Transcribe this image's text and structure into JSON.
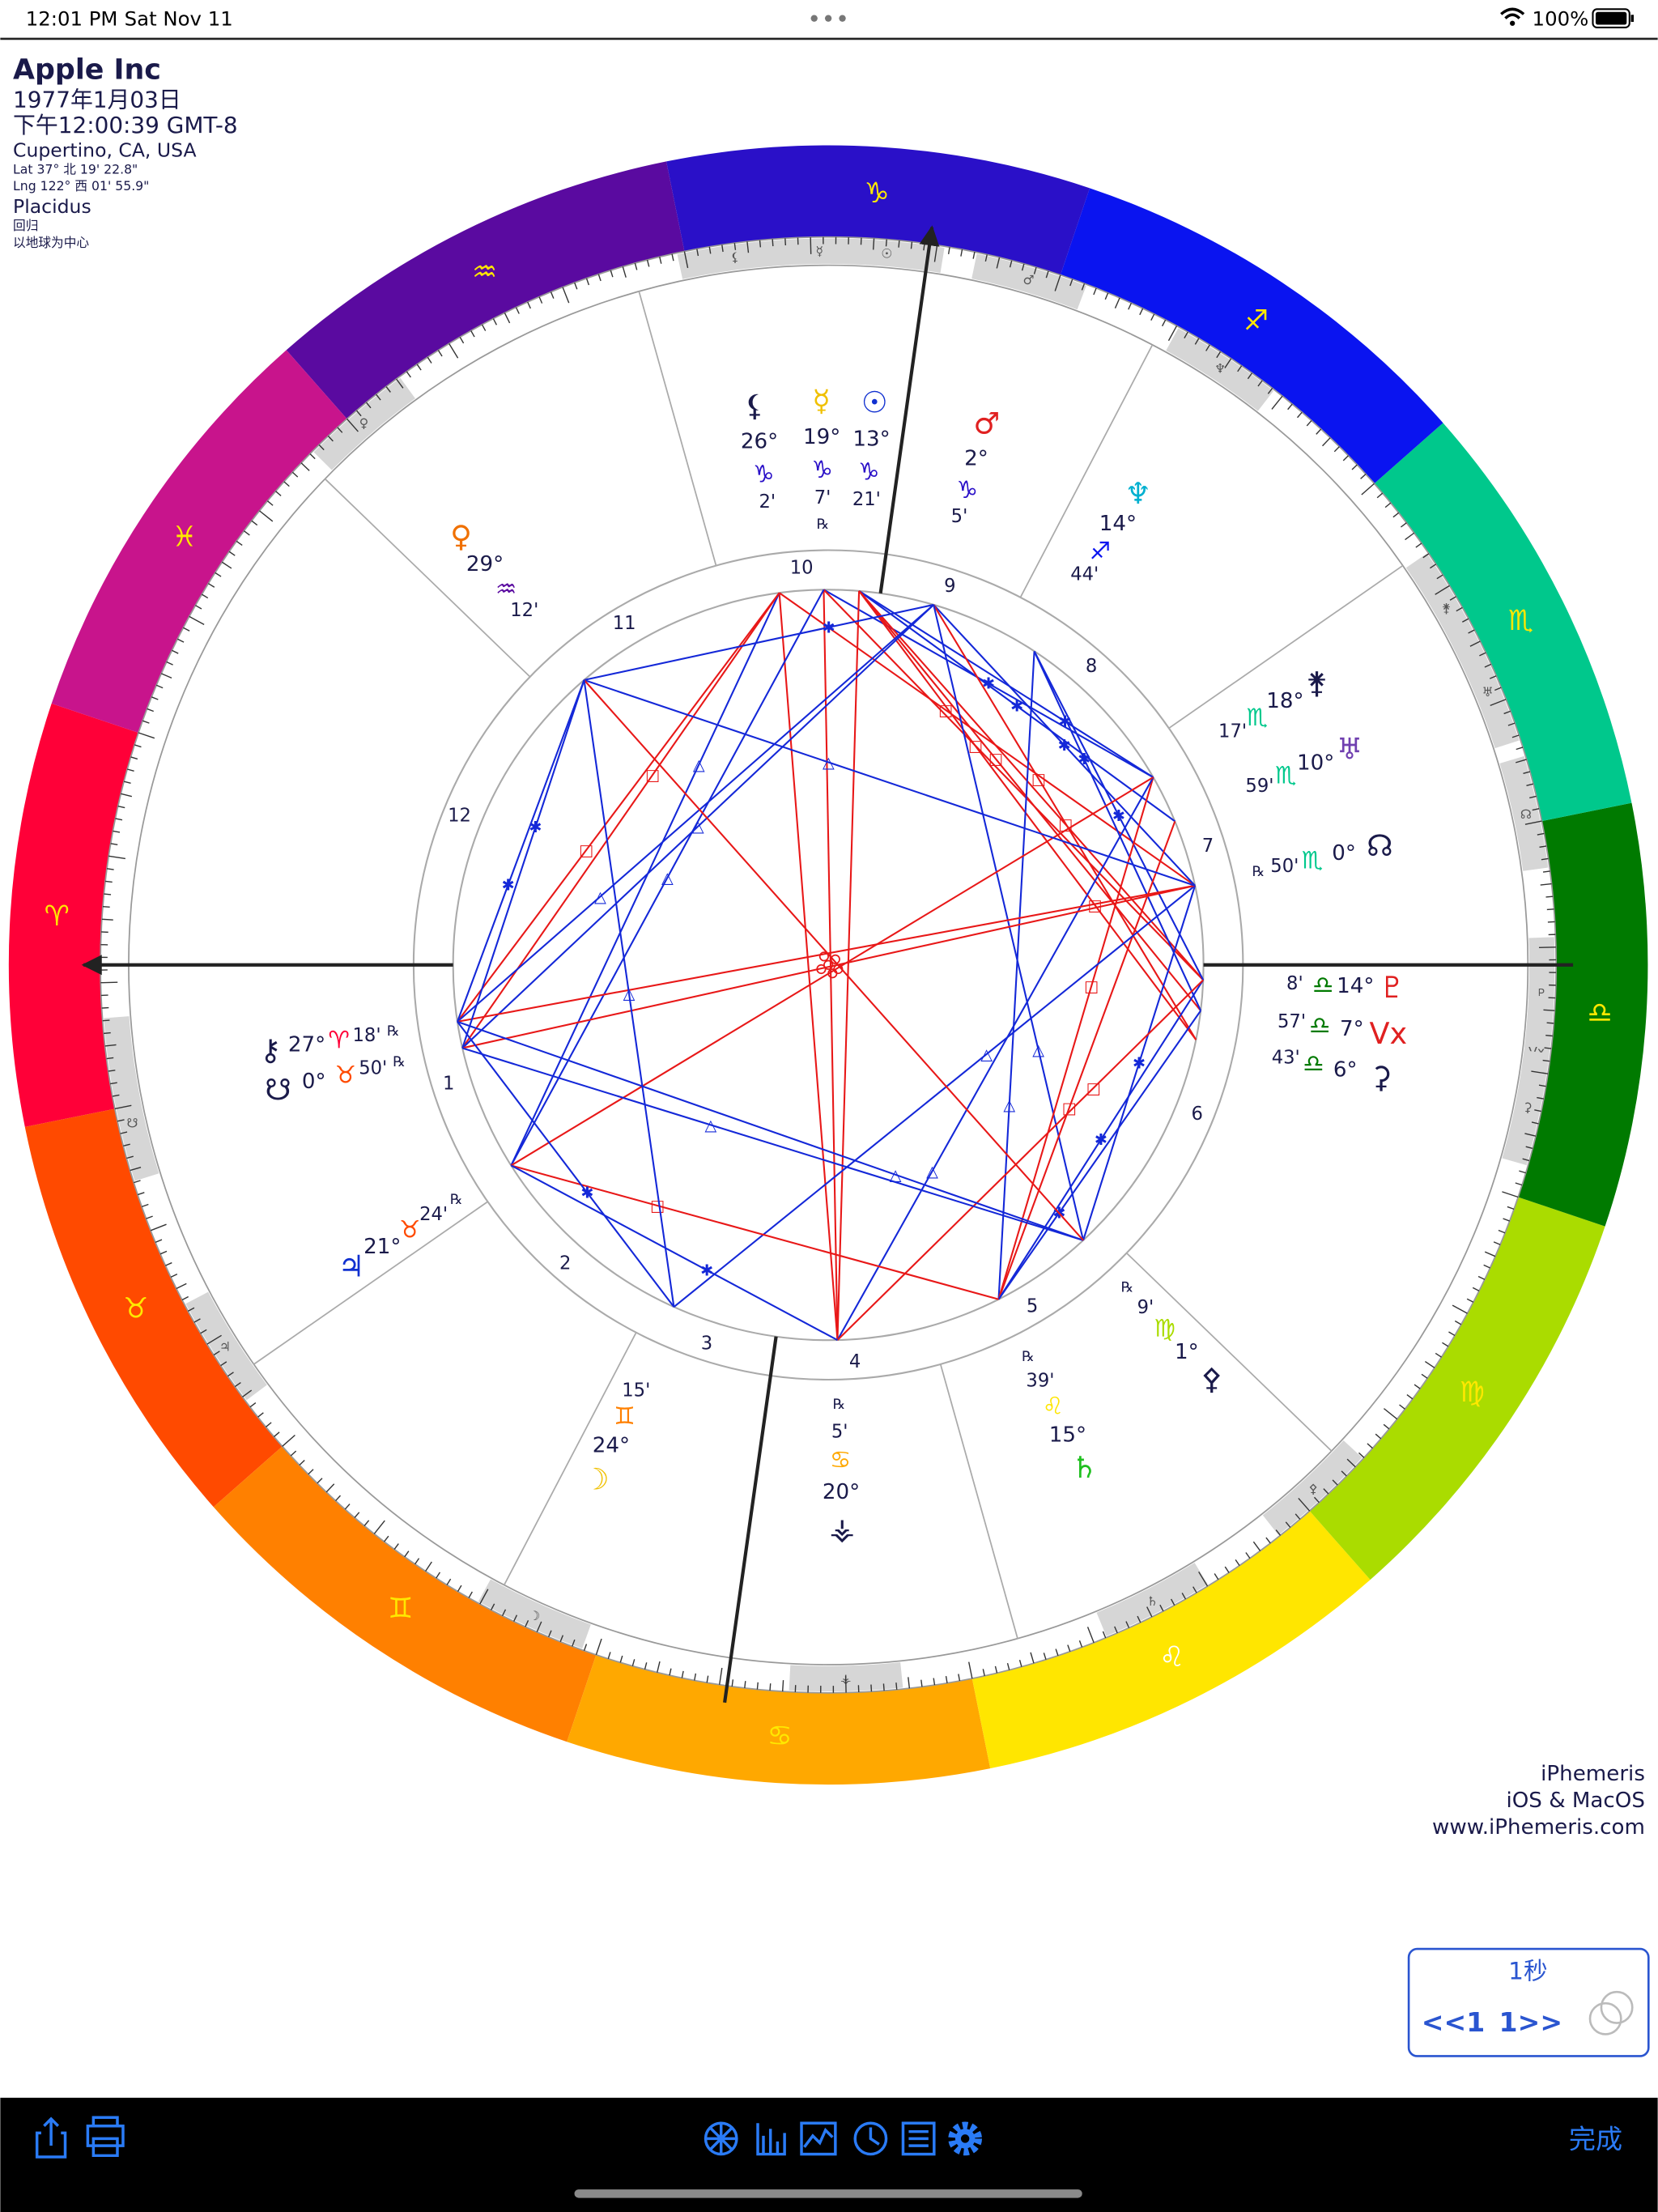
{
  "status_bar": {
    "time": "12:01 PM",
    "date": "Sat Nov 11",
    "battery": "100%"
  },
  "header": {
    "name": "Apple Inc",
    "date": "1977年1月03日",
    "time": "下午12:00:39 GMT-8",
    "location": "Cupertino, CA, USA",
    "latitude": "Lat 37° 北 19' 22.8\"",
    "longitude": "Lng 122° 西 01' 55.9\"",
    "house_system": "Placidus",
    "zodiac": "回归",
    "perspective": "以地球为中心"
  },
  "wheel": {
    "signs": [
      {
        "glyph": "♈",
        "color": "#ff0038"
      },
      {
        "glyph": "♉",
        "color": "#ff4a00"
      },
      {
        "glyph": "♊",
        "color": "#ff8000"
      },
      {
        "glyph": "♋",
        "color": "#ffa800"
      },
      {
        "glyph": "♌",
        "color": "#ffe600"
      },
      {
        "glyph": "♍",
        "color": "#aadc00"
      },
      {
        "glyph": "♎",
        "color": "#007a00"
      },
      {
        "glyph": "♏",
        "color": "#00c88c"
      },
      {
        "glyph": "♐",
        "color": "#0a14f0"
      },
      {
        "glyph": "♑",
        "color": "#2a10c8"
      },
      {
        "glyph": "♒",
        "color": "#5a0aa0"
      },
      {
        "glyph": "♓",
        "color": "#c8148c"
      }
    ],
    "houses": [
      "1",
      "2",
      "3",
      "4",
      "5",
      "6",
      "7",
      "8",
      "9",
      "10",
      "11",
      "12"
    ],
    "planets": [
      {
        "glyph": "⚸",
        "degree": "26°",
        "sign": "♑",
        "minute": "2'",
        "color": "#1a1a4a"
      },
      {
        "glyph": "☿",
        "degree": "19°",
        "sign": "♑",
        "minute": "7'",
        "retrograde": "℞",
        "color": "#f0c000"
      },
      {
        "glyph": "☉",
        "degree": "13°",
        "sign": "♑",
        "minute": "21'",
        "color": "#1030d0"
      },
      {
        "glyph": "♂",
        "degree": "2°",
        "sign": "♑",
        "minute": "5'",
        "color": "#e02020"
      },
      {
        "glyph": "♆",
        "degree": "14°",
        "sign": "♐",
        "minute": "44'",
        "color": "#00b0d0"
      },
      {
        "glyph": "⚵",
        "degree": "18°",
        "sign": "♏",
        "minute": "17'",
        "color": "#1a1a4a"
      },
      {
        "glyph": "♅",
        "degree": "10°",
        "sign": "♏",
        "minute": "59'",
        "color": "#7040b0"
      },
      {
        "glyph": "☊",
        "degree": "0°",
        "sign": "♏",
        "minute": "50'",
        "retrograde": "℞",
        "color": "#1a1a4a"
      },
      {
        "glyph": "♇",
        "degree": "14°",
        "sign": "♎",
        "minute": "8'",
        "color": "#e02020"
      },
      {
        "glyph": "Vx",
        "degree": "7°",
        "sign": "♎",
        "minute": "57'",
        "color": "#e02020"
      },
      {
        "glyph": "⚳",
        "degree": "6°",
        "sign": "♎",
        "minute": "43'",
        "color": "#1a1a4a"
      },
      {
        "glyph": "⚴",
        "degree": "1°",
        "sign": "♍",
        "minute": "9'",
        "retrograde": "℞",
        "color": "#1a1a4a"
      },
      {
        "glyph": "♄",
        "degree": "15°",
        "sign": "♌",
        "minute": "39'",
        "retrograde": "℞",
        "color": "#20c020"
      },
      {
        "glyph": "⚶",
        "degree": "20°",
        "sign": "♋",
        "minute": "5'",
        "retrograde": "℞",
        "color": "#1a1a4a"
      },
      {
        "glyph": "☽",
        "degree": "24°",
        "sign": "♊",
        "minute": "15'",
        "color": "#f0c000"
      },
      {
        "glyph": "♃",
        "degree": "21°",
        "sign": "♉",
        "minute": "24'",
        "retrograde": "℞",
        "color": "#1030d0"
      },
      {
        "glyph": "⚷",
        "degree": "27°",
        "sign": "♈",
        "minute": "18'",
        "retrograde": "℞",
        "color": "#1a1a4a"
      },
      {
        "glyph": "☋",
        "degree": "0°",
        "sign": "♉",
        "minute": "50'",
        "retrograde": "℞",
        "color": "#1a1a4a"
      },
      {
        "glyph": "♀",
        "degree": "29°",
        "sign": "♒",
        "minute": "12'",
        "color": "#f07000"
      }
    ],
    "aspect_symbols": {
      "square": "□",
      "trine": "△",
      "sextile": "✱"
    }
  },
  "credits": {
    "app": "iPhemeris",
    "platforms": "iOS & MacOS",
    "url": "www.iPhemeris.com"
  },
  "step_control": {
    "interval": "1秒",
    "back": "<<1",
    "forward": "1>>"
  },
  "toolbar": {
    "done": "完成"
  }
}
